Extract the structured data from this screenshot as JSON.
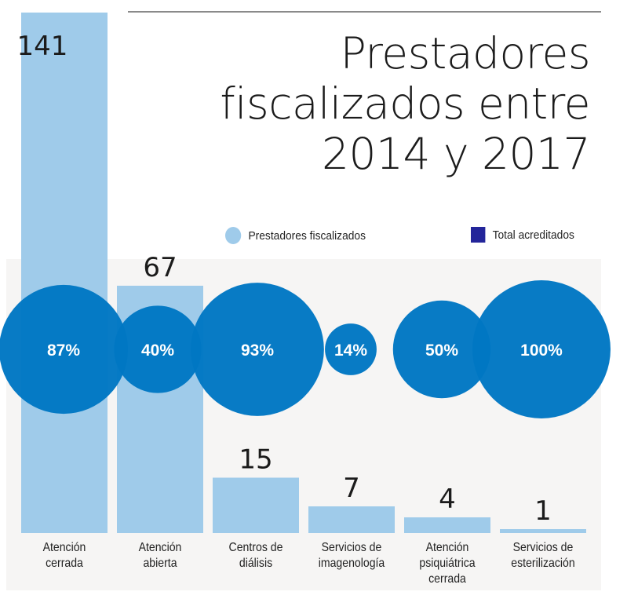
{
  "title": "Prestadores fiscalizados entre 2014 y 2017",
  "legend": {
    "fiscalizados_label": "Prestadores fiscalizados",
    "acreditados_label": "Total acreditados"
  },
  "colors": {
    "bar": "#9fcbea",
    "bubble": "#0077c3",
    "legend_acreditados": "#23259a",
    "text": "#1b1b1b",
    "bubble_text": "#ffffff",
    "background_panel": "#f6f5f4"
  },
  "chart_data": {
    "type": "bar",
    "title": "Prestadores fiscalizados entre 2014 y 2017",
    "categories": [
      "Atención cerrada",
      "Atención abierta",
      "Centros de diálisis",
      "Servicios de imagenología",
      "Atención psiquiátrica cerrada",
      "Servicios de esterilización"
    ],
    "category_labels_display": [
      "Atención\ncerrada",
      "Atención\nabierta",
      "Centros de\ndiálisis",
      "Servicios de\nimagenología",
      "Atención\npsiquiátrica\ncerrada",
      "Servicios de\nesterilización"
    ],
    "series": [
      {
        "name": "Prestadores fiscalizados",
        "type": "bar",
        "values": [
          141,
          67,
          15,
          7,
          4,
          1
        ]
      },
      {
        "name": "Total acreditados",
        "type": "bubble",
        "unit": "%",
        "values": [
          87,
          40,
          93,
          14,
          50,
          100
        ]
      }
    ],
    "value_labels": [
      "141",
      "67",
      "15",
      "7",
      "4",
      "1"
    ],
    "percent_labels": [
      "87%",
      "40%",
      "93%",
      "14%",
      "50%",
      "100%"
    ],
    "xlabel": "",
    "ylabel": "",
    "ylim": [
      0,
      141
    ],
    "grid": false,
    "legend_position": "top-right"
  }
}
